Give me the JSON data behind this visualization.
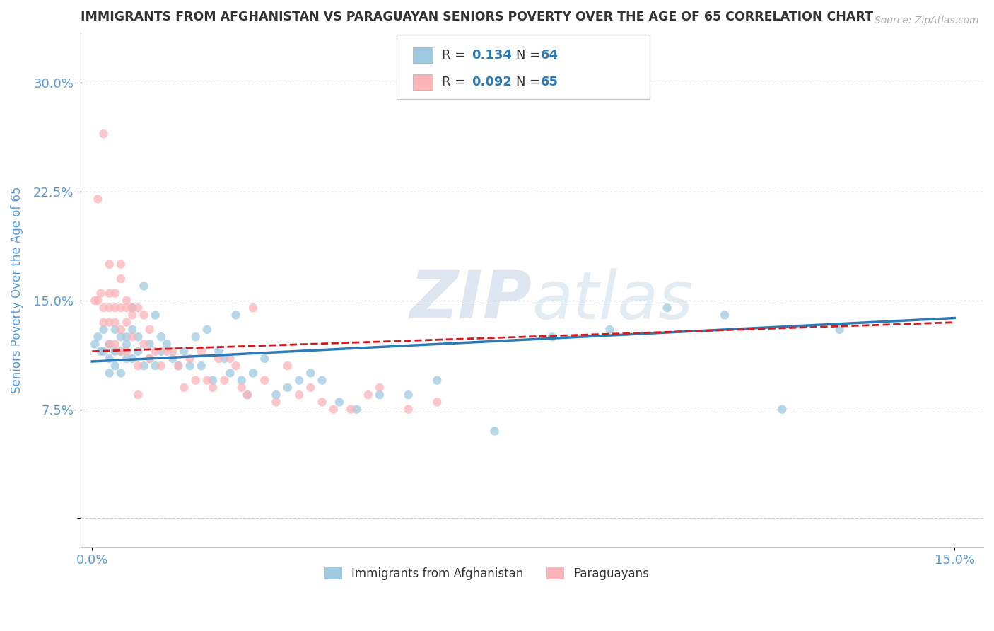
{
  "title": "IMMIGRANTS FROM AFGHANISTAN VS PARAGUAYAN SENIORS POVERTY OVER THE AGE OF 65 CORRELATION CHART",
  "source_text": "Source: ZipAtlas.com",
  "ylabel": "Seniors Poverty Over the Age of 65",
  "watermark_text": "ZIPatlas",
  "xlim": [
    -0.002,
    0.155
  ],
  "ylim": [
    -0.02,
    0.335
  ],
  "xtick_vals": [
    0.0,
    0.15
  ],
  "xtick_labels": [
    "0.0%",
    "15.0%"
  ],
  "ytick_vals": [
    0.0,
    0.075,
    0.15,
    0.225,
    0.3
  ],
  "ytick_labels": [
    "",
    "7.5%",
    "15.0%",
    "22.5%",
    "30.0%"
  ],
  "grid_color": "#cccccc",
  "background_color": "#ffffff",
  "blue_color": "#9ecae1",
  "pink_color": "#fbb4b9",
  "blue_line_color": "#2c7bb6",
  "pink_line_color": "#d7191c",
  "title_color": "#333333",
  "axis_label_color": "#5b9bd5",
  "tick_label_color": "#5b9bd5",
  "series1_label": "Immigrants from Afghanistan",
  "series2_label": "Paraguayans",
  "blue_R": 0.134,
  "blue_N": 64,
  "pink_R": 0.092,
  "pink_N": 65,
  "blue_scatter_x": [
    0.0005,
    0.001,
    0.0015,
    0.002,
    0.002,
    0.003,
    0.003,
    0.003,
    0.004,
    0.004,
    0.004,
    0.005,
    0.005,
    0.005,
    0.006,
    0.006,
    0.006,
    0.007,
    0.007,
    0.007,
    0.008,
    0.008,
    0.009,
    0.009,
    0.01,
    0.01,
    0.011,
    0.011,
    0.012,
    0.012,
    0.013,
    0.014,
    0.015,
    0.016,
    0.017,
    0.018,
    0.019,
    0.02,
    0.021,
    0.022,
    0.023,
    0.024,
    0.025,
    0.026,
    0.027,
    0.028,
    0.03,
    0.032,
    0.034,
    0.036,
    0.038,
    0.04,
    0.043,
    0.046,
    0.05,
    0.055,
    0.06,
    0.07,
    0.08,
    0.09,
    0.1,
    0.11,
    0.12,
    0.13
  ],
  "blue_scatter_y": [
    0.12,
    0.125,
    0.115,
    0.13,
    0.115,
    0.12,
    0.11,
    0.1,
    0.13,
    0.115,
    0.105,
    0.125,
    0.115,
    0.1,
    0.125,
    0.12,
    0.11,
    0.145,
    0.13,
    0.11,
    0.125,
    0.115,
    0.16,
    0.105,
    0.12,
    0.11,
    0.14,
    0.105,
    0.125,
    0.115,
    0.12,
    0.11,
    0.105,
    0.115,
    0.105,
    0.125,
    0.105,
    0.13,
    0.095,
    0.115,
    0.11,
    0.1,
    0.14,
    0.095,
    0.085,
    0.1,
    0.11,
    0.085,
    0.09,
    0.095,
    0.1,
    0.095,
    0.08,
    0.075,
    0.085,
    0.085,
    0.095,
    0.06,
    0.125,
    0.13,
    0.145,
    0.14,
    0.075,
    0.13
  ],
  "pink_scatter_x": [
    0.0005,
    0.001,
    0.0015,
    0.002,
    0.002,
    0.003,
    0.003,
    0.003,
    0.004,
    0.004,
    0.004,
    0.005,
    0.005,
    0.005,
    0.006,
    0.006,
    0.006,
    0.007,
    0.007,
    0.008,
    0.008,
    0.009,
    0.009,
    0.01,
    0.01,
    0.011,
    0.012,
    0.013,
    0.014,
    0.015,
    0.016,
    0.017,
    0.018,
    0.019,
    0.02,
    0.021,
    0.022,
    0.023,
    0.024,
    0.025,
    0.026,
    0.027,
    0.028,
    0.03,
    0.032,
    0.034,
    0.036,
    0.038,
    0.04,
    0.042,
    0.045,
    0.048,
    0.05,
    0.055,
    0.06,
    0.001,
    0.002,
    0.003,
    0.003,
    0.004,
    0.005,
    0.005,
    0.006,
    0.007,
    0.008
  ],
  "pink_scatter_y": [
    0.15,
    0.15,
    0.155,
    0.145,
    0.135,
    0.145,
    0.135,
    0.12,
    0.145,
    0.135,
    0.12,
    0.145,
    0.13,
    0.115,
    0.145,
    0.135,
    0.115,
    0.14,
    0.125,
    0.145,
    0.105,
    0.14,
    0.12,
    0.13,
    0.11,
    0.115,
    0.105,
    0.115,
    0.115,
    0.105,
    0.09,
    0.11,
    0.095,
    0.115,
    0.095,
    0.09,
    0.11,
    0.095,
    0.11,
    0.105,
    0.09,
    0.085,
    0.145,
    0.095,
    0.08,
    0.105,
    0.085,
    0.09,
    0.08,
    0.075,
    0.075,
    0.085,
    0.09,
    0.075,
    0.08,
    0.22,
    0.265,
    0.175,
    0.155,
    0.155,
    0.175,
    0.165,
    0.15,
    0.145,
    0.085
  ]
}
